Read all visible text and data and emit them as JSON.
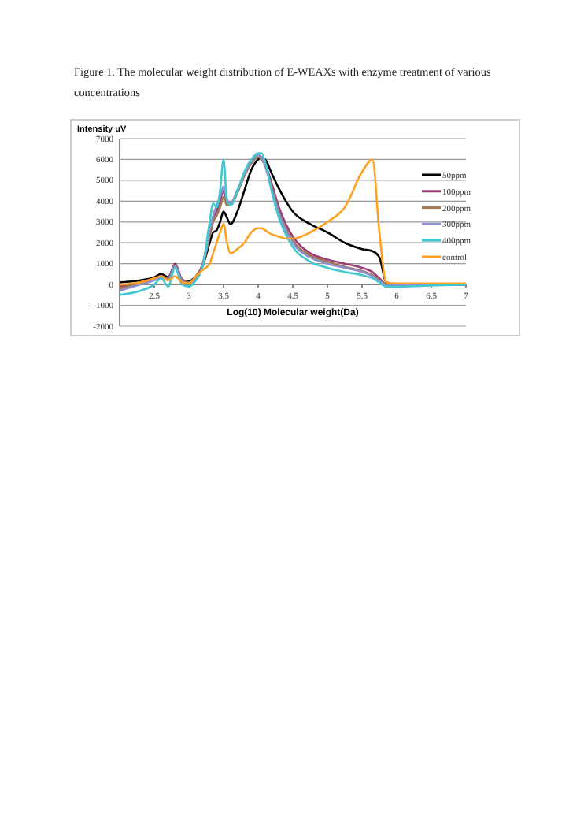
{
  "chart_data": {
    "type": "line",
    "title": "Figure 1. The molecular weight distribution of E-WEAXs with enzyme treatment of various concentrations",
    "xlabel": "Log(10) Molecular weight(Da)",
    "ylabel": "Intensity uV",
    "x": [
      2,
      2.3,
      2.5,
      2.6,
      2.7,
      2.8,
      2.9,
      3.0,
      3.1,
      3.2,
      3.3,
      3.35,
      3.4,
      3.45,
      3.5,
      3.55,
      3.6,
      3.7,
      3.8,
      3.9,
      4.0,
      4.05,
      4.1,
      4.2,
      4.3,
      4.4,
      4.5,
      4.75,
      5,
      5.25,
      5.5,
      5.65,
      5.75,
      5.85,
      6,
      6.5,
      7
    ],
    "series": [
      {
        "name": "50ppm",
        "color": "#000000",
        "values": [
          100,
          200,
          350,
          500,
          350,
          900,
          200,
          150,
          400,
          900,
          2000,
          2500,
          2600,
          3000,
          3500,
          3200,
          2900,
          3500,
          4500,
          5500,
          6000,
          6100,
          6000,
          5300,
          4600,
          4000,
          3500,
          2900,
          2500,
          2000,
          1700,
          1600,
          1300,
          100,
          0,
          0,
          0
        ]
      },
      {
        "name": "100ppm",
        "color": "#9c3c78",
        "values": [
          -100,
          100,
          300,
          400,
          300,
          1000,
          250,
          100,
          350,
          1000,
          2500,
          3200,
          3500,
          4000,
          4500,
          4000,
          3900,
          4500,
          5300,
          5900,
          6100,
          6100,
          5800,
          4800,
          3700,
          2900,
          2300,
          1500,
          1200,
          1000,
          800,
          600,
          300,
          0,
          0,
          null,
          null
        ]
      },
      {
        "name": "200ppm",
        "color": "#a07850",
        "values": [
          -200,
          50,
          250,
          400,
          250,
          900,
          200,
          100,
          300,
          900,
          2300,
          3000,
          3300,
          3700,
          4200,
          3800,
          3800,
          4400,
          5200,
          5800,
          6100,
          6000,
          5700,
          4600,
          3500,
          2700,
          2100,
          1400,
          1100,
          850,
          650,
          450,
          200,
          0,
          0,
          0,
          0
        ]
      },
      {
        "name": "300ppm",
        "color": "#9090d0",
        "values": [
          -300,
          0,
          200,
          350,
          200,
          900,
          150,
          50,
          300,
          900,
          2600,
          3300,
          3800,
          4200,
          4700,
          4100,
          3900,
          4500,
          5300,
          5900,
          6200,
          6100,
          5700,
          4500,
          3400,
          2600,
          2000,
          1300,
          1000,
          800,
          600,
          400,
          150,
          -50,
          -50,
          0,
          0
        ]
      },
      {
        "name": "400ppm",
        "color": "#40c8d0",
        "values": [
          -500,
          -300,
          0,
          300,
          -100,
          800,
          0,
          -100,
          200,
          900,
          3000,
          3900,
          3700,
          4500,
          6000,
          4000,
          3800,
          4500,
          5400,
          6000,
          6300,
          6300,
          5900,
          4400,
          3200,
          2400,
          1800,
          1100,
          800,
          600,
          450,
          300,
          100,
          -100,
          -100,
          -50,
          0
        ]
      },
      {
        "name": "control",
        "color": "#ffa020",
        "values": [
          0,
          100,
          300,
          400,
          200,
          400,
          100,
          50,
          400,
          700,
          1000,
          1500,
          2000,
          2500,
          2900,
          2000,
          1500,
          1700,
          2000,
          2500,
          2700,
          2700,
          2600,
          2400,
          2300,
          2200,
          2200,
          2500,
          3000,
          3700,
          5400,
          6000,
          2500,
          100,
          50,
          50,
          50
        ]
      }
    ],
    "xlim": [
      2,
      7
    ],
    "xticks": [
      2.5,
      3,
      3.5,
      4,
      4.5,
      5,
      5.5,
      6,
      6.5,
      7
    ],
    "ylim": [
      -2000,
      7000
    ],
    "yticks": [
      -2000,
      -1000,
      0,
      1000,
      2000,
      3000,
      4000,
      5000,
      6000,
      7000
    ],
    "grid": "y",
    "legend": "right",
    "line_style": "solid",
    "marker": "none"
  }
}
